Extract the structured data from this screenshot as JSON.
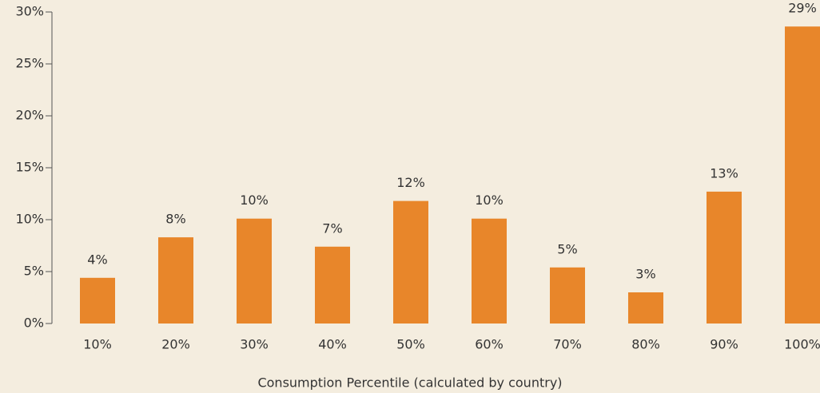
{
  "chart_data": {
    "type": "bar",
    "x_label": "Consumption Percentile (calculated by country)",
    "categories": [
      "10%",
      "20%",
      "30%",
      "40%",
      "50%",
      "60%",
      "70%",
      "80%",
      "90%",
      "100%"
    ],
    "values": [
      4.4,
      8.3,
      10.1,
      7.4,
      11.8,
      10.1,
      5.4,
      3.0,
      12.7,
      28.6
    ],
    "value_labels": [
      "4%",
      "8%",
      "10%",
      "7%",
      "12%",
      "10%",
      "5%",
      "3%",
      "13%",
      "29%"
    ],
    "color": "#e8862a",
    "ylim": [
      0,
      30
    ],
    "yticks": [
      {
        "value": 0,
        "label": "0%"
      },
      {
        "value": 5,
        "label": "5%"
      },
      {
        "value": 10,
        "label": "10%"
      },
      {
        "value": 15,
        "label": "15%"
      },
      {
        "value": 20,
        "label": "20%"
      },
      {
        "value": 25,
        "label": "25%"
      },
      {
        "value": 30,
        "label": "30%"
      }
    ]
  }
}
